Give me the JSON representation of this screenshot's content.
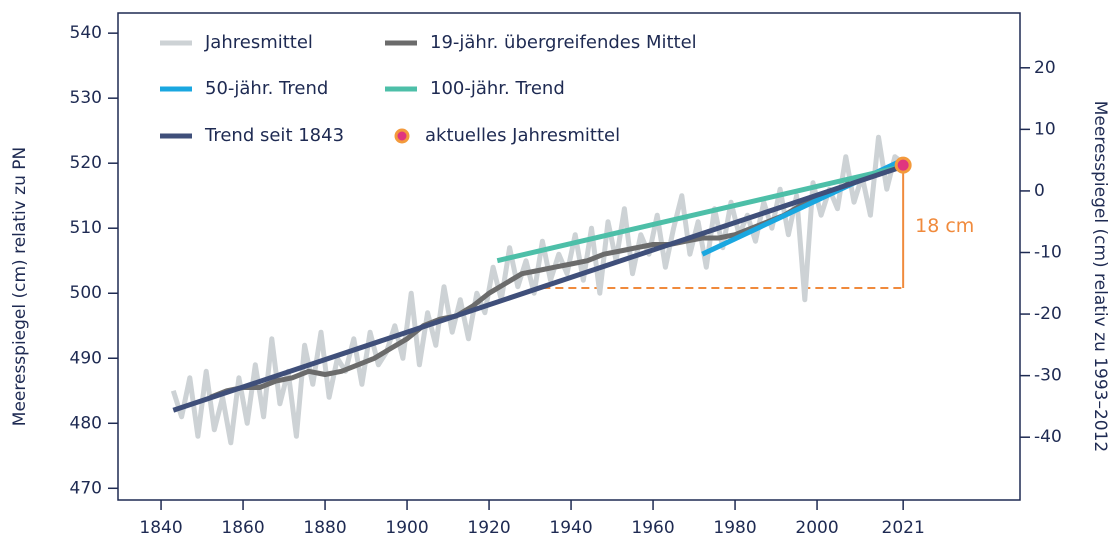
{
  "chart_data": {
    "type": "line",
    "y_label": "Meeresspiegel (cm) relativ zu PN",
    "y2_label": "Meeresspiegel (cm) relativ zu 1993–2012",
    "xlim": [
      1829.5,
      2049.5
    ],
    "xticks": [
      1840,
      1860,
      1880,
      1900,
      1920,
      1940,
      1960,
      1980,
      2000,
      2021
    ],
    "ylim": [
      468.2,
      543.1
    ],
    "yticks": [
      470,
      480,
      490,
      500,
      510,
      520,
      530,
      540
    ],
    "y2lim": [
      -50.2,
      28.9
    ],
    "y2ticks": [
      -40,
      -30,
      -20,
      -10,
      0,
      10,
      20
    ],
    "series": [
      {
        "name": "Jahresmittel",
        "color": "#cdd2d5",
        "width": 5,
        "x": [
          1843,
          1845,
          1847,
          1849,
          1851,
          1853,
          1855,
          1857,
          1859,
          1861,
          1863,
          1865,
          1867,
          1869,
          1871,
          1873,
          1875,
          1877,
          1879,
          1881,
          1883,
          1885,
          1887,
          1889,
          1891,
          1893,
          1895,
          1897,
          1899,
          1901,
          1903,
          1905,
          1907,
          1909,
          1911,
          1913,
          1915,
          1917,
          1919,
          1921,
          1923,
          1925,
          1927,
          1929,
          1931,
          1933,
          1935,
          1937,
          1939,
          1941,
          1943,
          1945,
          1947,
          1949,
          1951,
          1953,
          1955,
          1957,
          1959,
          1961,
          1963,
          1965,
          1967,
          1969,
          1971,
          1973,
          1975,
          1977,
          1979,
          1981,
          1983,
          1985,
          1987,
          1989,
          1991,
          1993,
          1995,
          1997,
          1999,
          2001,
          2003,
          2005,
          2007,
          2009,
          2011,
          2013,
          2015,
          2017,
          2019,
          2021
        ],
        "values": [
          485,
          481,
          487,
          478,
          488,
          479,
          484,
          477,
          487,
          480,
          489,
          481,
          493,
          483,
          488,
          478,
          492,
          486,
          494,
          484,
          490,
          488,
          493,
          486,
          494,
          489,
          491,
          495,
          490,
          500,
          489,
          497,
          492,
          501,
          494,
          499,
          493,
          500,
          497,
          504,
          499,
          507,
          501,
          505,
          500,
          508,
          502,
          506,
          503,
          509,
          502,
          510,
          500,
          511,
          505,
          513,
          503,
          509,
          506,
          512,
          504,
          510,
          515,
          506,
          511,
          504,
          513,
          507,
          514,
          509,
          512,
          508,
          514,
          510,
          516,
          509,
          515,
          499,
          517,
          512,
          516,
          513,
          521,
          514,
          518,
          512,
          524,
          516,
          521,
          520
        ]
      },
      {
        "name": "19-jähr. übergreifendes Mittel",
        "color": "#6b6b6b",
        "width": 5,
        "x": [
          1852,
          1856,
          1860,
          1864,
          1868,
          1872,
          1876,
          1880,
          1884,
          1888,
          1892,
          1896,
          1900,
          1904,
          1908,
          1912,
          1916,
          1920,
          1924,
          1928,
          1932,
          1936,
          1940,
          1944,
          1948,
          1952,
          1956,
          1960,
          1964,
          1968,
          1972,
          1976,
          1980,
          1984,
          1988,
          1992,
          1996,
          2000,
          2004,
          2008
        ],
        "values": [
          484,
          485,
          485.5,
          485.5,
          486.5,
          487,
          488,
          487.5,
          488,
          489,
          490,
          491.5,
          493,
          495,
          496,
          496.5,
          498,
          500,
          501.5,
          503,
          503.5,
          504,
          504.5,
          505,
          506,
          506.5,
          507,
          507.5,
          507.5,
          508,
          508.5,
          508.5,
          509,
          510,
          511,
          512,
          513.5,
          514.5,
          515.5,
          517
        ]
      },
      {
        "name": "50-jähr. Trend",
        "color": "#1aa7e0",
        "width": 5,
        "x": [
          1972,
          2021
        ],
        "values": [
          506,
          520.5
        ]
      },
      {
        "name": "100-jähr. Trend",
        "color": "#4dbfa8",
        "width": 5,
        "x": [
          1922,
          2021
        ],
        "values": [
          505,
          519.5
        ]
      },
      {
        "name": "Trend seit 1843",
        "color": "#3f4f7a",
        "width": 5,
        "x": [
          1843,
          2021
        ],
        "values": [
          482,
          519.5
        ]
      },
      {
        "name": "aktuelles Jahresmittel",
        "color": "#e0357f",
        "edge_color": "#f39a3c",
        "marker": true,
        "x": [
          2021
        ],
        "values": [
          519.7
        ]
      }
    ],
    "annotation": {
      "text": "18 cm",
      "color": "#f08a3c",
      "x": 2021,
      "x_start": 1933,
      "from": 500.8,
      "to": 519.7
    }
  }
}
